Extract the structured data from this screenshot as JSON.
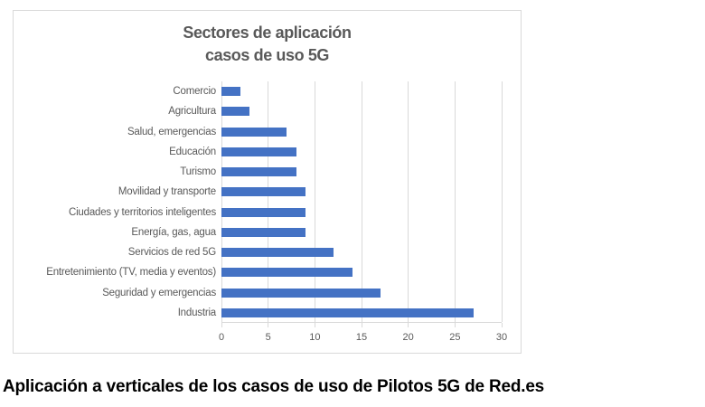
{
  "chart_data": {
    "type": "bar",
    "orientation": "horizontal",
    "title": "Sectores de aplicación casos de uso 5G",
    "title_lines": [
      "Sectores de aplicación",
      "casos de uso 5G"
    ],
    "categories": [
      "Comercio",
      "Agricultura",
      "Salud, emergencias",
      "Educación",
      "Turismo",
      "Movilidad y transporte",
      "Ciudades y territorios inteligentes",
      "Energía, gas, agua",
      "Servicios de red 5G",
      "Entretenimiento (TV, media y eventos)",
      "Seguridad y emergencias",
      "Industria"
    ],
    "values": [
      2,
      3,
      7,
      8,
      8,
      9,
      9,
      9,
      12,
      14,
      17,
      27
    ],
    "xlabel": "",
    "ylabel": "",
    "xlim": [
      0,
      30
    ],
    "x_ticks": [
      0,
      5,
      10,
      15,
      20,
      25,
      30
    ],
    "grid": true,
    "legend_position": "none",
    "bar_color": "#4472C4",
    "gridline_color": "#D9D9D9",
    "axis_text_color": "#595959",
    "title_color": "#595959"
  },
  "caption": "Aplicación a verticales de los casos de uso de Pilotos 5G de Red.es"
}
